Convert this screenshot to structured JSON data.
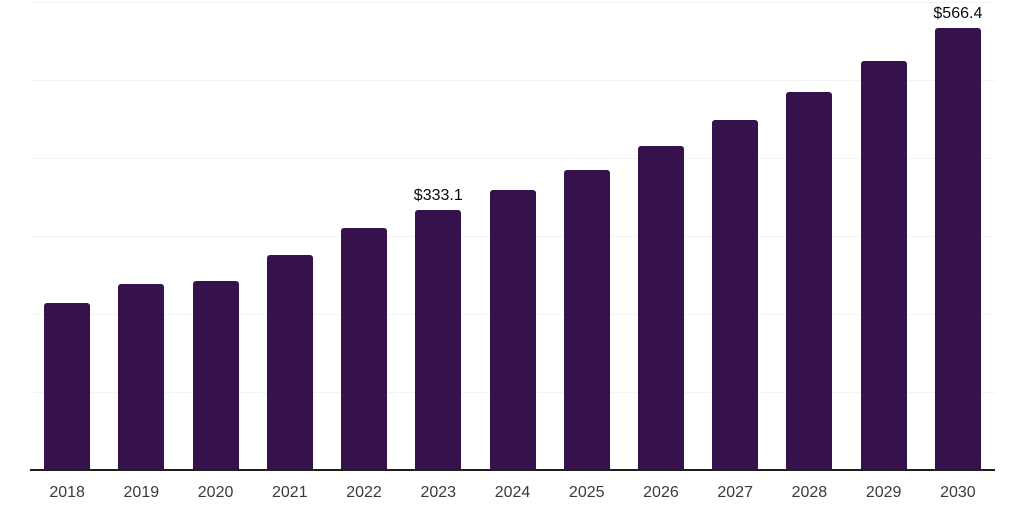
{
  "chart_data": {
    "type": "bar",
    "title": "",
    "xlabel": "",
    "ylabel": "",
    "categories": [
      "2018",
      "2019",
      "2020",
      "2021",
      "2022",
      "2023",
      "2024",
      "2025",
      "2026",
      "2027",
      "2028",
      "2029",
      "2030"
    ],
    "values": [
      214.0,
      238.2,
      242.2,
      275.5,
      310.0,
      333.1,
      358.8,
      384.4,
      415.9,
      448.5,
      484.4,
      524.0,
      566.4
    ],
    "annotations": [
      {
        "category": "2023",
        "text": "$333.1"
      },
      {
        "category": "2030",
        "text": "$566.4"
      }
    ],
    "ylim": [
      0,
      600
    ],
    "grid_interval": 100,
    "grid": true,
    "y_tick_labels_shown": false,
    "legend": null,
    "colors": {
      "bar": "#36124D",
      "grid": "#f3f3f3",
      "axis": "#1f1f1f",
      "tick_label": "#3a3a3a",
      "annotation": "#0a0a0a",
      "background": "#ffffff"
    }
  }
}
